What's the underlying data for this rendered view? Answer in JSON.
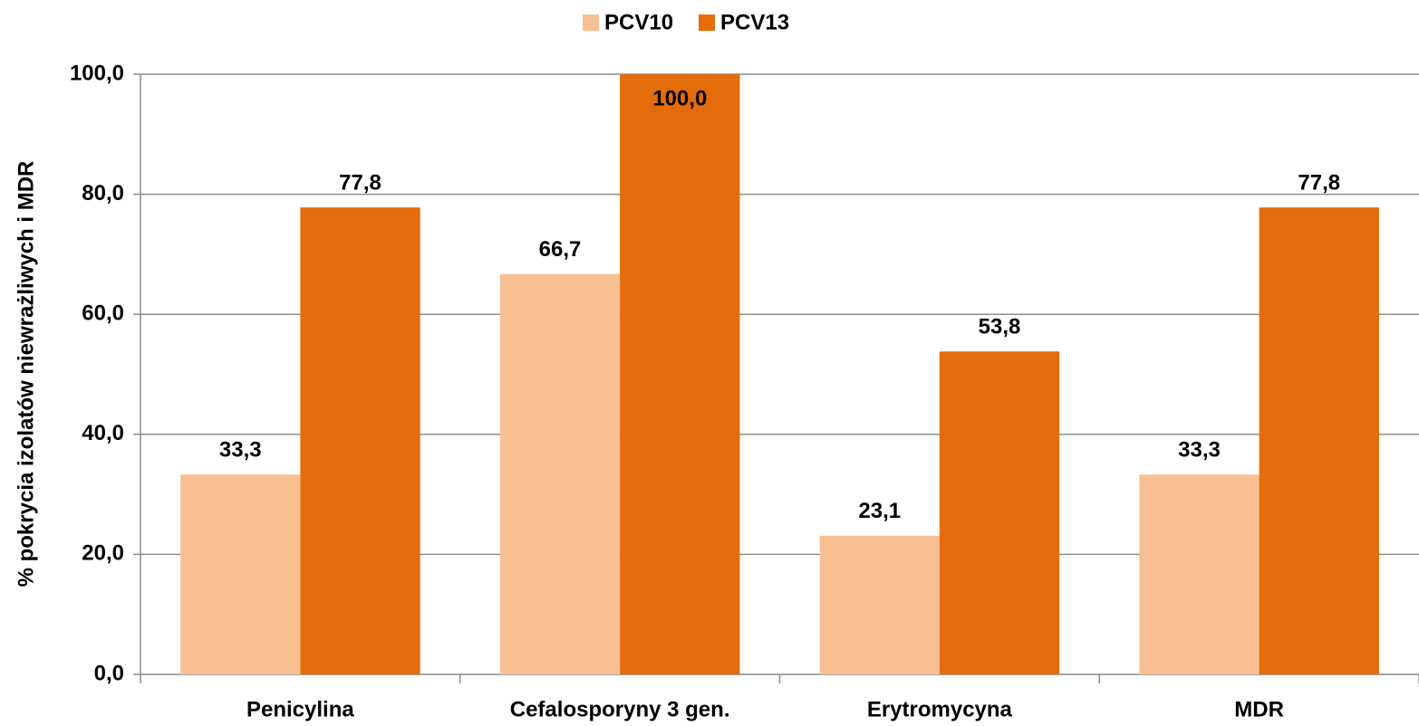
{
  "chart_data": {
    "type": "bar",
    "y_label": "% pokrycia izolatów niewrażliwych i MDR",
    "categories": [
      "Penicylina",
      "Cefalosporyny 3 gen.",
      "Erytromycyna",
      "MDR"
    ],
    "series": [
      {
        "name": "PCV10",
        "color": "#f8c092",
        "values": [
          33.3,
          66.7,
          23.1,
          33.3
        ],
        "value_labels": [
          "33,3",
          "66,7",
          "23,1",
          "33,3"
        ]
      },
      {
        "name": "PCV13",
        "color": "#e46c0a",
        "values": [
          77.8,
          100.0,
          53.8,
          77.8
        ],
        "value_labels": [
          "77,8",
          "100,0",
          "53,8",
          "77,8"
        ]
      }
    ],
    "ylim": [
      0,
      100
    ],
    "yticks": [
      {
        "value": 0,
        "label": "0,0"
      },
      {
        "value": 20,
        "label": "20,0"
      },
      {
        "value": 40,
        "label": "40,0"
      },
      {
        "value": 60,
        "label": "60,0"
      },
      {
        "value": 80,
        "label": "80,0"
      },
      {
        "value": 100,
        "label": "100,0"
      }
    ],
    "grid": true,
    "legend": "top"
  }
}
